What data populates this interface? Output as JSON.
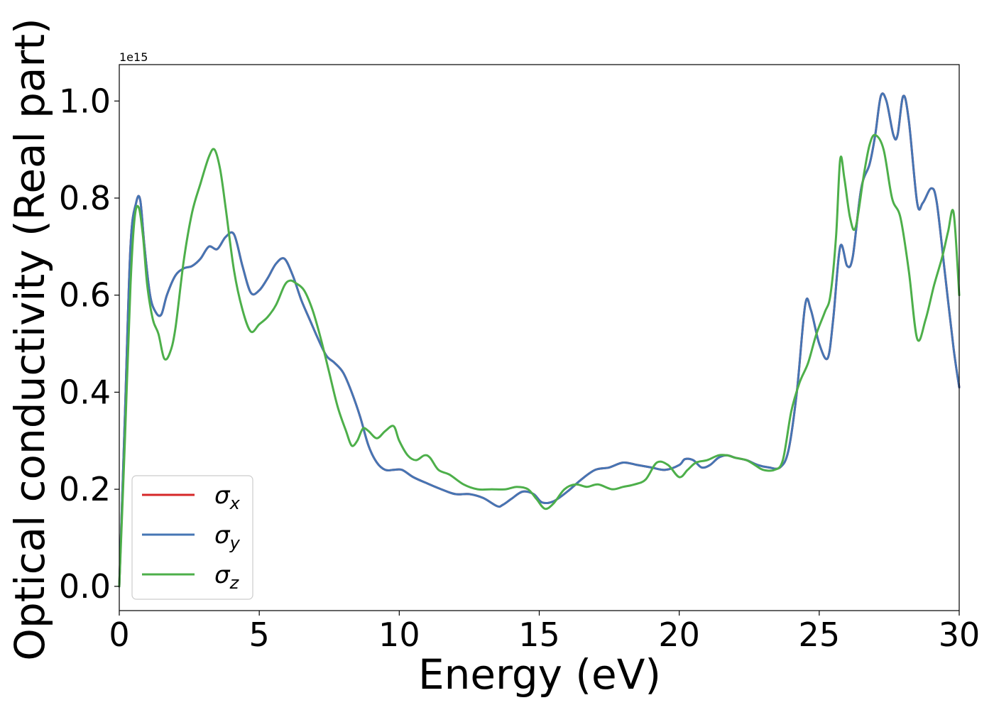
{
  "chart_data": {
    "type": "line",
    "xlabel": "Energy (eV)",
    "ylabel": "Optical conductivity (Real part)",
    "y_offset_text": "1e15",
    "xlim": [
      0,
      30
    ],
    "ylim": [
      -0.05,
      1.075
    ],
    "xticks": [
      0,
      5,
      10,
      15,
      20,
      25,
      30
    ],
    "xtick_labels": [
      "0",
      "5",
      "10",
      "15",
      "20",
      "25",
      "30"
    ],
    "yticks": [
      0.0,
      0.2,
      0.4,
      0.6,
      0.8,
      1.0
    ],
    "ytick_labels": [
      "0.0",
      "0.2",
      "0.4",
      "0.6",
      "0.8",
      "1.0"
    ],
    "grid": false,
    "legend_position": "lower-left",
    "series": [
      {
        "name": "σx",
        "symbol": "σ",
        "subscript": "x",
        "color": "#d62728",
        "x": [
          0,
          0.2,
          0.4,
          0.6,
          0.75,
          0.9,
          1.1,
          1.3,
          1.5,
          1.7,
          2.0,
          2.3,
          2.6,
          2.9,
          3.2,
          3.5,
          3.8,
          4.1,
          4.4,
          4.7,
          5.0,
          5.3,
          5.6,
          5.9,
          6.2,
          6.5,
          6.8,
          7.1,
          7.4,
          7.7,
          8.0,
          8.3,
          8.6,
          8.9,
          9.2,
          9.5,
          9.8,
          10.1,
          10.5,
          11.0,
          11.5,
          12.0,
          12.5,
          13.0,
          13.5,
          13.7,
          14.0,
          14.4,
          14.8,
          15.1,
          15.5,
          16.0,
          16.5,
          17.0,
          17.5,
          18.0,
          18.5,
          19.0,
          19.5,
          20.0,
          20.2,
          20.5,
          20.8,
          21.1,
          21.4,
          21.7,
          22.0,
          22.4,
          22.8,
          23.2,
          23.6,
          23.9,
          24.2,
          24.5,
          24.7,
          25.0,
          25.3,
          25.5,
          25.75,
          26.0,
          26.2,
          26.5,
          26.8,
          27.0,
          27.2,
          27.4,
          27.65,
          27.8,
          28.0,
          28.2,
          28.5,
          28.7,
          29.0,
          29.2,
          29.5,
          29.8,
          30.0
        ],
        "values": [
          0.0,
          0.35,
          0.7,
          0.79,
          0.795,
          0.7,
          0.6,
          0.565,
          0.56,
          0.6,
          0.64,
          0.655,
          0.66,
          0.675,
          0.7,
          0.695,
          0.72,
          0.725,
          0.66,
          0.605,
          0.61,
          0.635,
          0.665,
          0.675,
          0.64,
          0.59,
          0.55,
          0.51,
          0.475,
          0.46,
          0.44,
          0.4,
          0.35,
          0.29,
          0.255,
          0.24,
          0.24,
          0.24,
          0.225,
          0.212,
          0.2,
          0.19,
          0.19,
          0.182,
          0.165,
          0.168,
          0.18,
          0.195,
          0.19,
          0.173,
          0.175,
          0.195,
          0.22,
          0.24,
          0.245,
          0.255,
          0.25,
          0.245,
          0.24,
          0.25,
          0.262,
          0.26,
          0.245,
          0.25,
          0.265,
          0.27,
          0.265,
          0.26,
          0.25,
          0.245,
          0.245,
          0.28,
          0.4,
          0.58,
          0.57,
          0.5,
          0.47,
          0.55,
          0.7,
          0.66,
          0.68,
          0.82,
          0.87,
          0.93,
          1.01,
          1.0,
          0.93,
          0.93,
          1.01,
          0.96,
          0.79,
          0.79,
          0.82,
          0.79,
          0.64,
          0.49,
          0.41
        ]
      },
      {
        "name": "σy",
        "symbol": "σ",
        "subscript": "y",
        "color": "#4575b4",
        "x": [
          0,
          0.2,
          0.4,
          0.6,
          0.75,
          0.9,
          1.1,
          1.3,
          1.5,
          1.7,
          2.0,
          2.3,
          2.6,
          2.9,
          3.2,
          3.5,
          3.8,
          4.1,
          4.4,
          4.7,
          5.0,
          5.3,
          5.6,
          5.9,
          6.2,
          6.5,
          6.8,
          7.1,
          7.4,
          7.7,
          8.0,
          8.3,
          8.6,
          8.9,
          9.2,
          9.5,
          9.8,
          10.1,
          10.5,
          11.0,
          11.5,
          12.0,
          12.5,
          13.0,
          13.5,
          13.7,
          14.0,
          14.4,
          14.8,
          15.1,
          15.5,
          16.0,
          16.5,
          17.0,
          17.5,
          18.0,
          18.5,
          19.0,
          19.5,
          20.0,
          20.2,
          20.5,
          20.8,
          21.1,
          21.4,
          21.7,
          22.0,
          22.4,
          22.8,
          23.2,
          23.6,
          23.9,
          24.2,
          24.5,
          24.7,
          25.0,
          25.3,
          25.5,
          25.75,
          26.0,
          26.2,
          26.5,
          26.8,
          27.0,
          27.2,
          27.4,
          27.65,
          27.8,
          28.0,
          28.2,
          28.5,
          28.7,
          29.0,
          29.2,
          29.5,
          29.8,
          30.0
        ],
        "values": [
          0.0,
          0.35,
          0.7,
          0.79,
          0.795,
          0.7,
          0.6,
          0.565,
          0.56,
          0.6,
          0.64,
          0.655,
          0.66,
          0.675,
          0.7,
          0.695,
          0.72,
          0.725,
          0.66,
          0.605,
          0.61,
          0.635,
          0.665,
          0.675,
          0.64,
          0.59,
          0.55,
          0.51,
          0.475,
          0.46,
          0.44,
          0.4,
          0.35,
          0.29,
          0.255,
          0.24,
          0.24,
          0.24,
          0.225,
          0.212,
          0.2,
          0.19,
          0.19,
          0.182,
          0.165,
          0.168,
          0.18,
          0.195,
          0.19,
          0.173,
          0.175,
          0.195,
          0.22,
          0.24,
          0.245,
          0.255,
          0.25,
          0.245,
          0.24,
          0.25,
          0.262,
          0.26,
          0.245,
          0.25,
          0.265,
          0.27,
          0.265,
          0.26,
          0.25,
          0.245,
          0.245,
          0.28,
          0.4,
          0.58,
          0.57,
          0.5,
          0.47,
          0.55,
          0.7,
          0.66,
          0.68,
          0.82,
          0.87,
          0.93,
          1.01,
          1.0,
          0.93,
          0.93,
          1.01,
          0.96,
          0.79,
          0.79,
          0.82,
          0.79,
          0.64,
          0.49,
          0.41
        ]
      },
      {
        "name": "σz",
        "symbol": "σ",
        "subscript": "z",
        "color": "#4daf4a",
        "x": [
          0,
          0.2,
          0.4,
          0.55,
          0.7,
          0.85,
          1.0,
          1.2,
          1.4,
          1.6,
          1.8,
          2.0,
          2.3,
          2.6,
          2.9,
          3.2,
          3.4,
          3.6,
          3.8,
          4.1,
          4.4,
          4.7,
          5.0,
          5.3,
          5.6,
          5.9,
          6.1,
          6.3,
          6.6,
          6.9,
          7.2,
          7.5,
          7.8,
          8.1,
          8.3,
          8.5,
          8.7,
          8.9,
          9.2,
          9.5,
          9.8,
          10.0,
          10.3,
          10.6,
          10.9,
          11.1,
          11.4,
          11.8,
          12.3,
          12.8,
          13.3,
          13.8,
          14.2,
          14.6,
          14.9,
          15.2,
          15.5,
          15.9,
          16.3,
          16.7,
          17.1,
          17.6,
          18.0,
          18.4,
          18.8,
          19.2,
          19.6,
          20.0,
          20.3,
          20.6,
          21.0,
          21.4,
          21.7,
          22.0,
          22.4,
          22.7,
          23.0,
          23.4,
          23.7,
          24.0,
          24.3,
          24.6,
          24.9,
          25.2,
          25.4,
          25.6,
          25.75,
          25.9,
          26.1,
          26.3,
          26.6,
          26.8,
          27.0,
          27.3,
          27.6,
          27.9,
          28.2,
          28.5,
          28.8,
          29.1,
          29.4,
          29.6,
          29.8,
          30.0
        ],
        "values": [
          0.0,
          0.3,
          0.62,
          0.76,
          0.78,
          0.72,
          0.62,
          0.55,
          0.52,
          0.47,
          0.48,
          0.53,
          0.67,
          0.77,
          0.83,
          0.885,
          0.9,
          0.86,
          0.78,
          0.65,
          0.57,
          0.525,
          0.54,
          0.555,
          0.58,
          0.62,
          0.63,
          0.625,
          0.61,
          0.57,
          0.51,
          0.44,
          0.37,
          0.32,
          0.29,
          0.3,
          0.325,
          0.32,
          0.305,
          0.32,
          0.33,
          0.3,
          0.27,
          0.26,
          0.27,
          0.265,
          0.24,
          0.23,
          0.21,
          0.2,
          0.2,
          0.2,
          0.205,
          0.2,
          0.18,
          0.16,
          0.17,
          0.2,
          0.21,
          0.205,
          0.21,
          0.2,
          0.205,
          0.21,
          0.22,
          0.255,
          0.25,
          0.225,
          0.24,
          0.255,
          0.26,
          0.27,
          0.27,
          0.265,
          0.26,
          0.25,
          0.24,
          0.24,
          0.26,
          0.36,
          0.42,
          0.46,
          0.52,
          0.565,
          0.6,
          0.72,
          0.88,
          0.84,
          0.76,
          0.74,
          0.85,
          0.91,
          0.93,
          0.9,
          0.8,
          0.76,
          0.65,
          0.51,
          0.55,
          0.62,
          0.68,
          0.73,
          0.77,
          0.6
        ]
      }
    ]
  }
}
